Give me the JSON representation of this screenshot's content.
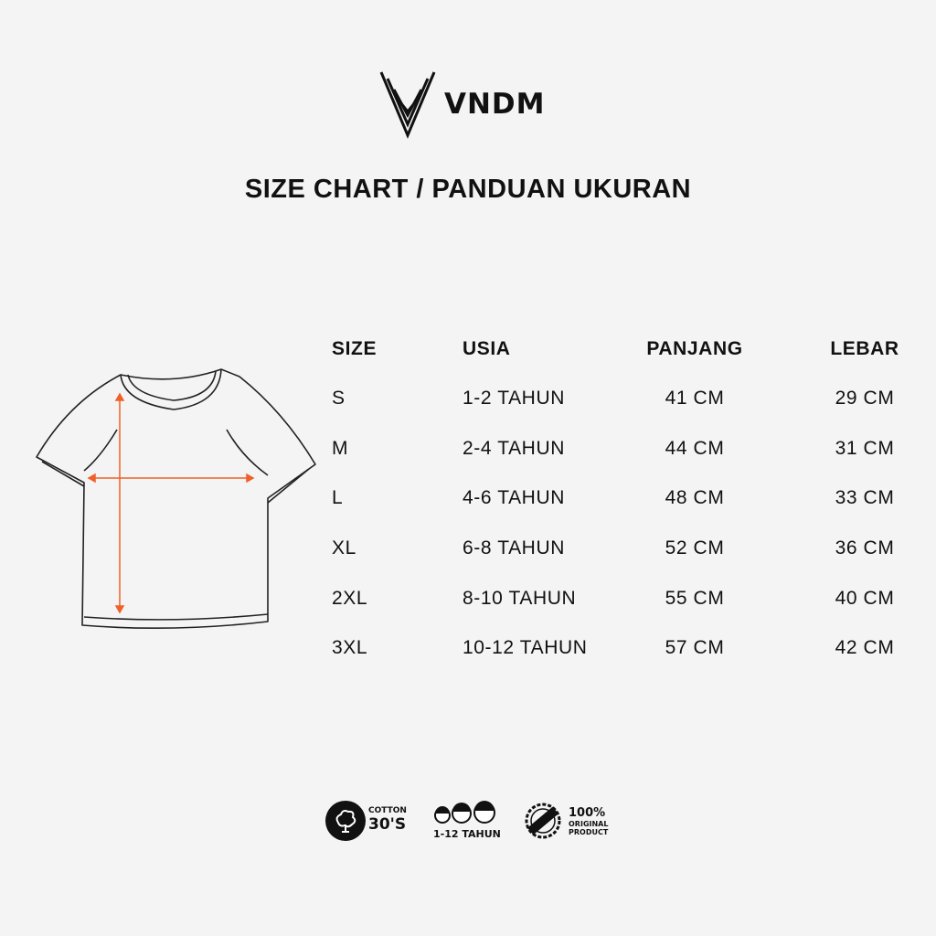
{
  "brand": {
    "name": "VNDM"
  },
  "title": "SIZE CHART / PANDUAN UKURAN",
  "table": {
    "headers": [
      "SIZE",
      "USIA",
      "PANJANG",
      "LEBAR"
    ],
    "rows": [
      [
        "S",
        "1-2 TAHUN",
        "41 CM",
        "29 CM"
      ],
      [
        "M",
        "2-4 TAHUN",
        "44 CM",
        "31 CM"
      ],
      [
        "L",
        "4-6 TAHUN",
        "48 CM",
        "33 CM"
      ],
      [
        "XL",
        "6-8 TAHUN",
        "52 CM",
        "36 CM"
      ],
      [
        "2XL",
        "8-10 TAHUN",
        "55 CM",
        "40 CM"
      ],
      [
        "3XL",
        "10-12 TAHUN",
        "57 CM",
        "42 CM"
      ]
    ]
  },
  "badges": {
    "cotton": {
      "line1": "COTTON",
      "line2": "30'S"
    },
    "age": {
      "label": "1-12 TAHUN"
    },
    "original": {
      "stamp": "ORIGINAL",
      "line1": "100%",
      "line2": "ORIGINAL",
      "line3": "PRODUCT"
    }
  },
  "colors": {
    "background": "#f4f4f4",
    "arrow": "#f0602a",
    "text": "#111111"
  }
}
